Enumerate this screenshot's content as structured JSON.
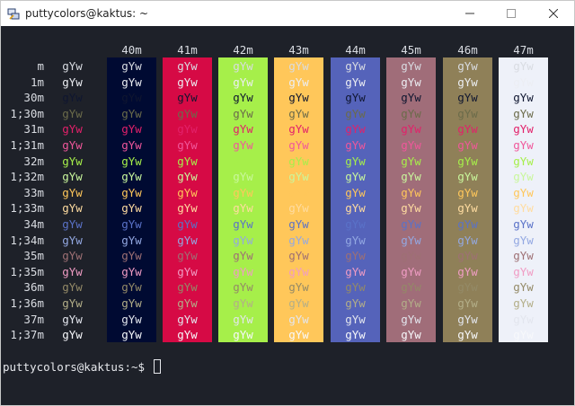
{
  "window": {
    "title": "puttycolors@kaktus: ~",
    "app_icon": "putty-icon",
    "controls": [
      "minimize-icon",
      "maximize-icon",
      "close-icon"
    ]
  },
  "terminal": {
    "background_color": "#1e2129",
    "default_fg": "#d9dce2",
    "bg_headers": [
      "40m",
      "41m",
      "42m",
      "43m",
      "44m",
      "45m",
      "46m",
      "47m"
    ],
    "bg_colors": [
      "#000a32",
      "#d60a45",
      "#a6ef4a",
      "#ffc75a",
      "#5563ba",
      "#a06d79",
      "#8f8058",
      "#eef1f9"
    ],
    "cell_text": "gYw",
    "rows": [
      {
        "label": "m",
        "fg": "#d9dce2"
      },
      {
        "label": "1m",
        "fg": "#eceef3"
      },
      {
        "label": "30m",
        "fg": "#0f1630"
      },
      {
        "label": "1;30m",
        "fg": "#6b6b4a"
      },
      {
        "label": "31m",
        "fg": "#e2216a"
      },
      {
        "label": "1;31m",
        "fg": "#f0579b"
      },
      {
        "label": "32m",
        "fg": "#a6ef4a"
      },
      {
        "label": "1;32m",
        "fg": "#c9f79c"
      },
      {
        "label": "33m",
        "fg": "#ffc75a"
      },
      {
        "label": "1;33m",
        "fg": "#ffdca0"
      },
      {
        "label": "34m",
        "fg": "#5a72c8"
      },
      {
        "label": "1;34m",
        "fg": "#93a8e2"
      },
      {
        "label": "35m",
        "fg": "#9e7074"
      },
      {
        "label": "1;35m",
        "fg": "#f09cc4"
      },
      {
        "label": "36m",
        "fg": "#948a67"
      },
      {
        "label": "1;36m",
        "fg": "#b3ae88"
      },
      {
        "label": "37m",
        "fg": "#e3e6ee"
      },
      {
        "label": "1;37m",
        "fg": "#f7f8fb"
      }
    ],
    "prompt": "puttycolors@kaktus:~$ "
  }
}
